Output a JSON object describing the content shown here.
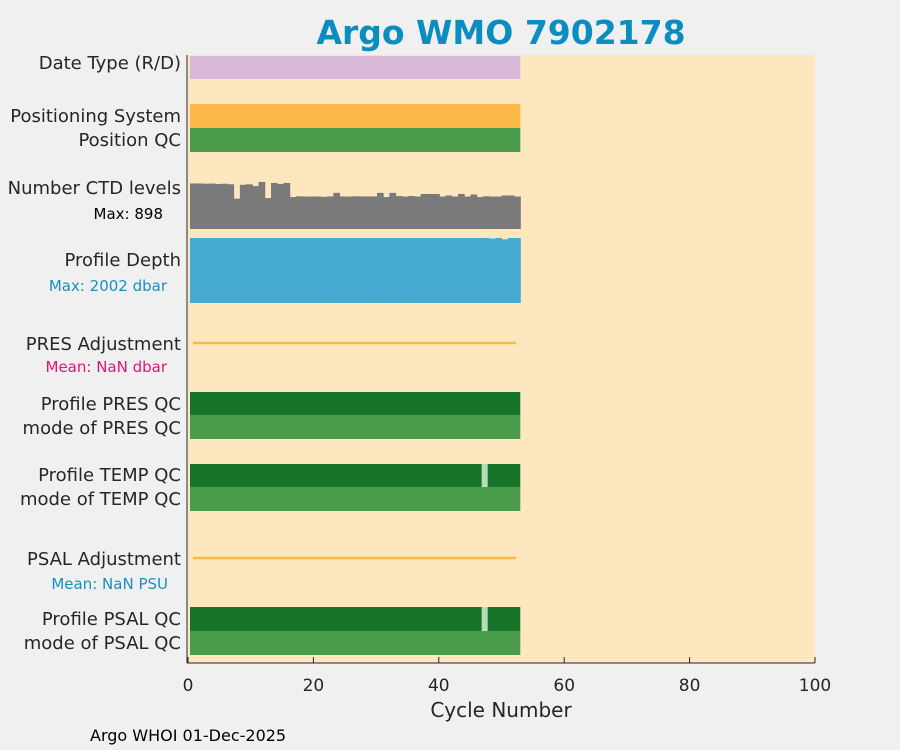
{
  "chart_data": {
    "type": "bar",
    "title": "Argo WMO 7902178",
    "xlabel": "Cycle Number",
    "xlim": [
      0,
      100
    ],
    "xticks": [
      0,
      20,
      40,
      60,
      80,
      100
    ],
    "cycles": [
      0,
      53
    ],
    "footer": "Argo WHOI 01-Dec-2025",
    "rows": [
      {
        "label": "Date Type (R/D)",
        "color": "#d8b9da",
        "kind": "band"
      },
      {
        "label": "Positioning System",
        "color": "#fbb847",
        "kind": "band"
      },
      {
        "label": "Position QC",
        "color": "#4a9b4a",
        "kind": "band"
      },
      {
        "label": "Number CTD levels",
        "sublabel": "Max: 898",
        "sublabel_color": "#000000",
        "kind": "hist",
        "color": "#7a7a7a",
        "max": 898,
        "values": [
          870,
          870,
          865,
          868,
          860,
          865,
          855,
          580,
          845,
          855,
          820,
          898,
          590,
          880,
          860,
          880,
          610,
          625,
          620,
          620,
          622,
          615,
          622,
          690,
          622,
          620,
          625,
          622,
          622,
          622,
          690,
          610,
          690,
          630,
          620,
          630,
          620,
          670,
          670,
          670,
          620,
          640,
          620,
          670,
          620,
          660,
          610,
          625,
          620,
          620,
          640,
          640,
          620
        ]
      },
      {
        "label": "Profile Depth",
        "sublabel": "Max: 2002 dbar",
        "sublabel_color": "#1a8fbf",
        "kind": "hist",
        "color": "#44aad1",
        "max": 2002,
        "values": [
          2002,
          2002,
          2002,
          2002,
          2002,
          2002,
          2002,
          2002,
          2002,
          2002,
          2002,
          2002,
          2002,
          2002,
          2002,
          2002,
          2002,
          2002,
          2002,
          2002,
          2002,
          2002,
          2002,
          2002,
          2002,
          2002,
          2002,
          2002,
          2002,
          2002,
          2002,
          2002,
          2002,
          2002,
          2002,
          2002,
          2002,
          2002,
          2002,
          2002,
          2002,
          2002,
          2002,
          2002,
          2002,
          2002,
          2002,
          2002,
          1985,
          2002,
          1960,
          2002,
          2002
        ]
      },
      {
        "label": "PRES Adjustment",
        "sublabel": "Mean:  NaN dbar",
        "sublabel_color": "#e0147a",
        "kind": "line",
        "color": "#fbb847"
      },
      {
        "label": "Profile PRES QC",
        "color": "#17752a",
        "kind": "band"
      },
      {
        "label": "mode of PRES QC",
        "color": "#4a9b4a",
        "kind": "band"
      },
      {
        "label": "Profile TEMP QC",
        "color": "#17752a",
        "kind": "band",
        "gap_cycle": 47,
        "gap_color": "#b8dcb8"
      },
      {
        "label": "mode of TEMP QC",
        "color": "#4a9b4a",
        "kind": "band"
      },
      {
        "label": "PSAL Adjustment",
        "sublabel": "Mean:  NaN PSU",
        "sublabel_color": "#1a8fbf",
        "kind": "line",
        "color": "#fbb847"
      },
      {
        "label": "Profile PSAL QC",
        "color": "#17752a",
        "kind": "band",
        "gap_cycle": 47,
        "gap_color": "#b8dcb8"
      },
      {
        "label": "mode of PSAL QC",
        "color": "#4a9b4a",
        "kind": "band"
      }
    ],
    "title_color": "#0b8ebf",
    "plot_bg": "#fde7bf"
  }
}
